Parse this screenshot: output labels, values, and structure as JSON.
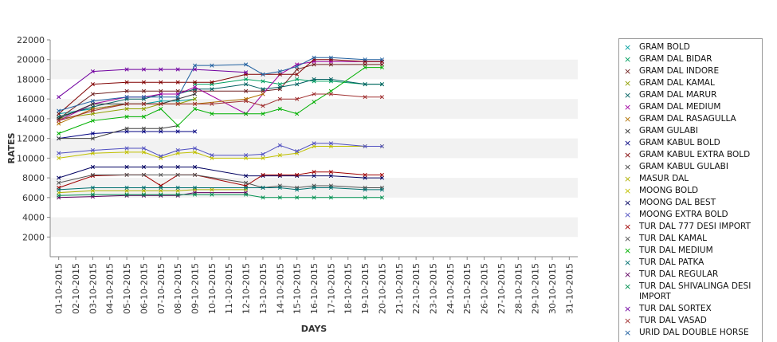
{
  "chart_data": {
    "type": "line",
    "xlabel": "DAYS",
    "ylabel": "RATES",
    "ylim": [
      0,
      22000
    ],
    "yticks": [
      2000,
      4000,
      6000,
      8000,
      10000,
      12000,
      14000,
      16000,
      18000,
      20000,
      22000
    ],
    "grid": "horizontal bands",
    "legend_position": "right",
    "x": [
      "01-10-2015",
      "02-10-2015",
      "03-10-2015",
      "04-10-2015",
      "05-10-2015",
      "06-10-2015",
      "07-10-2015",
      "08-10-2015",
      "09-10-2015",
      "10-10-2015",
      "11-10-2015",
      "12-10-2015",
      "13-10-2015",
      "14-10-2015",
      "15-10-2015",
      "16-10-2015",
      "17-10-2015",
      "18-10-2015",
      "19-10-2015",
      "20-10-2015",
      "21-10-2015",
      "22-10-2015",
      "23-10-2015",
      "24-10-2015",
      "25-10-2015",
      "26-10-2015",
      "27-10-2015",
      "28-10-2015",
      "29-10-2015",
      "30-10-2015",
      "31-10-2015"
    ],
    "series": [
      {
        "name": "GRAM BOLD",
        "color": "#00a0a0",
        "values": [
          14500,
          null,
          15000,
          null,
          15500,
          15500,
          15800,
          15800,
          16000,
          null,
          null,
          null,
          null,
          null,
          null,
          null,
          null,
          null,
          null,
          null,
          null,
          null,
          null,
          null,
          null,
          null,
          null,
          null,
          null,
          null,
          null
        ]
      },
      {
        "name": "GRAM DAL BIDAR",
        "color": "#00a060",
        "values": [
          null,
          null,
          null,
          null,
          null,
          null,
          null,
          null,
          17500,
          17500,
          null,
          18000,
          17800,
          17500,
          18000,
          17800,
          17800,
          null,
          17500,
          17500,
          null,
          null,
          null,
          null,
          null,
          null,
          null,
          null,
          null,
          null,
          null
        ]
      },
      {
        "name": "GRAM DAL INDORE",
        "color": "#702020",
        "values": [
          14000,
          null,
          16500,
          null,
          16800,
          16800,
          16800,
          16800,
          16800,
          null,
          null,
          16800,
          16800,
          17000,
          19000,
          19500,
          19500,
          null,
          19500,
          19500,
          null,
          null,
          null,
          null,
          null,
          null,
          null,
          null,
          null,
          null,
          null
        ]
      },
      {
        "name": "GRAM DAL KAMAL",
        "color": "#90a000",
        "values": [
          14000,
          null,
          14500,
          null,
          15000,
          15000,
          15500,
          15500,
          16000,
          null,
          null,
          null,
          null,
          null,
          null,
          null,
          null,
          null,
          null,
          null,
          null,
          null,
          null,
          null,
          null,
          null,
          null,
          null,
          null,
          null,
          null
        ]
      },
      {
        "name": "GRAM DAL MARUR",
        "color": "#006060",
        "values": [
          14200,
          null,
          15200,
          null,
          16000,
          16000,
          16500,
          16500,
          17000,
          17000,
          null,
          17500,
          17000,
          17200,
          17500,
          18000,
          18000,
          null,
          17500,
          17500,
          null,
          null,
          null,
          null,
          null,
          null,
          null,
          null,
          null,
          null,
          null
        ]
      },
      {
        "name": "GRAM DAL MEDIUM",
        "color": "#a000a0",
        "values": [
          13800,
          null,
          15500,
          null,
          16200,
          16200,
          16500,
          16500,
          17200,
          null,
          null,
          14500,
          16500,
          18500,
          19500,
          19800,
          19800,
          null,
          19800,
          19800,
          null,
          null,
          null,
          null,
          null,
          null,
          null,
          null,
          null,
          null,
          null
        ]
      },
      {
        "name": "GRAM DAL RASAGULLA",
        "color": "#b07000",
        "values": [
          13500,
          null,
          15000,
          null,
          15500,
          15500,
          15500,
          15500,
          15500,
          null,
          null,
          16000,
          16500,
          null,
          null,
          null,
          null,
          null,
          null,
          null,
          null,
          null,
          null,
          null,
          null,
          null,
          null,
          null,
          null,
          null,
          null
        ]
      },
      {
        "name": "GRAM GULABI",
        "color": "#303030",
        "values": [
          14000,
          null,
          15500,
          null,
          15500,
          15500,
          15500,
          16000,
          16500,
          null,
          null,
          null,
          null,
          null,
          null,
          null,
          null,
          null,
          null,
          null,
          null,
          null,
          null,
          null,
          null,
          null,
          null,
          null,
          null,
          null,
          null
        ]
      },
      {
        "name": "GRAM KABUL BOLD",
        "color": "#000080",
        "values": [
          12000,
          null,
          12500,
          null,
          12700,
          12700,
          12700,
          12700,
          12700,
          null,
          null,
          null,
          null,
          null,
          null,
          null,
          null,
          null,
          null,
          null,
          null,
          null,
          null,
          null,
          null,
          null,
          null,
          null,
          null,
          null,
          null
        ]
      },
      {
        "name": "GRAM KABUL EXTRA BOLD",
        "color": "#800000",
        "values": [
          14500,
          null,
          17500,
          null,
          17700,
          17700,
          17700,
          17700,
          17700,
          17700,
          null,
          18500,
          18500,
          18500,
          18500,
          20000,
          20000,
          null,
          19800,
          19800,
          null,
          null,
          null,
          null,
          null,
          null,
          null,
          null,
          null,
          null,
          null
        ]
      },
      {
        "name": "GRAM KABUL GULABI",
        "color": "#404040",
        "values": [
          12000,
          null,
          12000,
          null,
          13000,
          13000,
          13000,
          13300,
          null,
          null,
          null,
          null,
          null,
          null,
          null,
          null,
          null,
          null,
          null,
          null,
          null,
          null,
          null,
          null,
          null,
          null,
          null,
          null,
          null,
          null,
          null
        ]
      },
      {
        "name": "MASUR DAL",
        "color": "#b0b000",
        "values": [
          6500,
          null,
          6700,
          null,
          6700,
          6700,
          6700,
          6700,
          6800,
          6800,
          null,
          6800,
          null,
          null,
          null,
          null,
          null,
          null,
          null,
          null,
          null,
          null,
          null,
          null,
          null,
          null,
          null,
          null,
          null,
          null,
          null
        ]
      },
      {
        "name": "MOONG BOLD",
        "color": "#c0c000",
        "values": [
          10000,
          null,
          10500,
          null,
          10600,
          10600,
          10000,
          10500,
          10600,
          10000,
          null,
          10000,
          10000,
          10300,
          10500,
          11200,
          11200,
          null,
          11200,
          11200,
          null,
          null,
          null,
          null,
          null,
          null,
          null,
          null,
          null,
          null,
          null
        ]
      },
      {
        "name": "MOONG DAL BEST",
        "color": "#000060",
        "values": [
          8000,
          null,
          9100,
          null,
          9100,
          9100,
          9100,
          9100,
          9100,
          null,
          null,
          8200,
          8200,
          8200,
          8200,
          8200,
          8200,
          null,
          8000,
          8000,
          null,
          null,
          null,
          null,
          null,
          null,
          null,
          null,
          null,
          null,
          null
        ]
      },
      {
        "name": "MOONG EXTRA BOLD",
        "color": "#5050c0",
        "values": [
          10500,
          null,
          10800,
          null,
          11000,
          11000,
          10200,
          10800,
          11000,
          10300,
          null,
          10300,
          10400,
          11300,
          10700,
          11500,
          11500,
          null,
          11200,
          11200,
          null,
          null,
          null,
          null,
          null,
          null,
          null,
          null,
          null,
          null,
          null
        ]
      },
      {
        "name": "TUR DAL  777 DESI IMPORT",
        "color": "#a00000",
        "values": [
          7000,
          null,
          8200,
          null,
          8300,
          8300,
          7200,
          8300,
          8300,
          null,
          null,
          7200,
          8300,
          8300,
          8300,
          8600,
          8600,
          null,
          8300,
          8300,
          null,
          null,
          null,
          null,
          null,
          null,
          null,
          null,
          null,
          null,
          null
        ]
      },
      {
        "name": "TUR DAL KAMAL",
        "color": "#505050",
        "values": [
          7500,
          null,
          8300,
          null,
          8300,
          8300,
          8300,
          8300,
          8300,
          null,
          null,
          7500,
          7000,
          7200,
          7000,
          7200,
          7200,
          null,
          7000,
          7000,
          null,
          null,
          null,
          null,
          null,
          null,
          null,
          null,
          null,
          null,
          null
        ]
      },
      {
        "name": "TUR DAL MEDIUM",
        "color": "#00b000",
        "values": [
          12500,
          null,
          13800,
          null,
          14200,
          14200,
          15000,
          13300,
          15000,
          14500,
          null,
          14500,
          14500,
          15000,
          14500,
          15700,
          16800,
          null,
          19200,
          19200,
          null,
          null,
          null,
          null,
          null,
          null,
          null,
          null,
          null,
          null,
          null
        ]
      },
      {
        "name": "TUR DAL PATKA",
        "color": "#007070",
        "values": [
          6800,
          null,
          7000,
          null,
          7000,
          7000,
          7000,
          7000,
          7000,
          null,
          null,
          7000,
          7000,
          7000,
          6800,
          7000,
          7000,
          null,
          6800,
          6800,
          null,
          null,
          null,
          null,
          null,
          null,
          null,
          null,
          null,
          null,
          null
        ]
      },
      {
        "name": "TUR DAL REGULAR",
        "color": "#600060",
        "values": [
          6000,
          null,
          6100,
          null,
          6200,
          6200,
          6200,
          6200,
          6500,
          null,
          null,
          6500,
          null,
          null,
          null,
          null,
          null,
          null,
          null,
          null,
          null,
          null,
          null,
          null,
          null,
          null,
          null,
          null,
          null,
          null,
          null
        ]
      },
      {
        "name": "TUR DAL SHIVALINGA DESI IMPORT",
        "color": "#009050",
        "values": [
          6200,
          null,
          6300,
          null,
          6300,
          6300,
          6300,
          6300,
          6300,
          6300,
          null,
          6300,
          6000,
          6000,
          6000,
          6000,
          6000,
          null,
          6000,
          6000,
          null,
          null,
          null,
          null,
          null,
          null,
          null,
          null,
          null,
          null,
          null
        ]
      },
      {
        "name": "TUR DAL SORTEX",
        "color": "#7000a0",
        "values": [
          16200,
          null,
          18800,
          null,
          19000,
          19000,
          19000,
          19000,
          19000,
          null,
          null,
          18700,
          null,
          null,
          null,
          null,
          null,
          null,
          null,
          null,
          null,
          null,
          null,
          null,
          null,
          null,
          null,
          null,
          null,
          null,
          null
        ]
      },
      {
        "name": "TUR DAL VASAD",
        "color": "#a03030",
        "values": [
          13800,
          null,
          14800,
          null,
          15500,
          15500,
          15500,
          15500,
          15500,
          15500,
          null,
          15800,
          15300,
          16000,
          16000,
          16500,
          16500,
          null,
          16200,
          16200,
          null,
          null,
          null,
          null,
          null,
          null,
          null,
          null,
          null,
          null,
          null
        ]
      },
      {
        "name": "URID DAL DOUBLE HORSE",
        "color": "#2060a0",
        "values": [
          14800,
          null,
          15800,
          null,
          16200,
          16200,
          16200,
          16200,
          19400,
          19400,
          null,
          19500,
          18500,
          18800,
          19300,
          20200,
          20200,
          null,
          20000,
          20000,
          null,
          null,
          null,
          null,
          null,
          null,
          null,
          null,
          null,
          null,
          null
        ]
      }
    ]
  }
}
